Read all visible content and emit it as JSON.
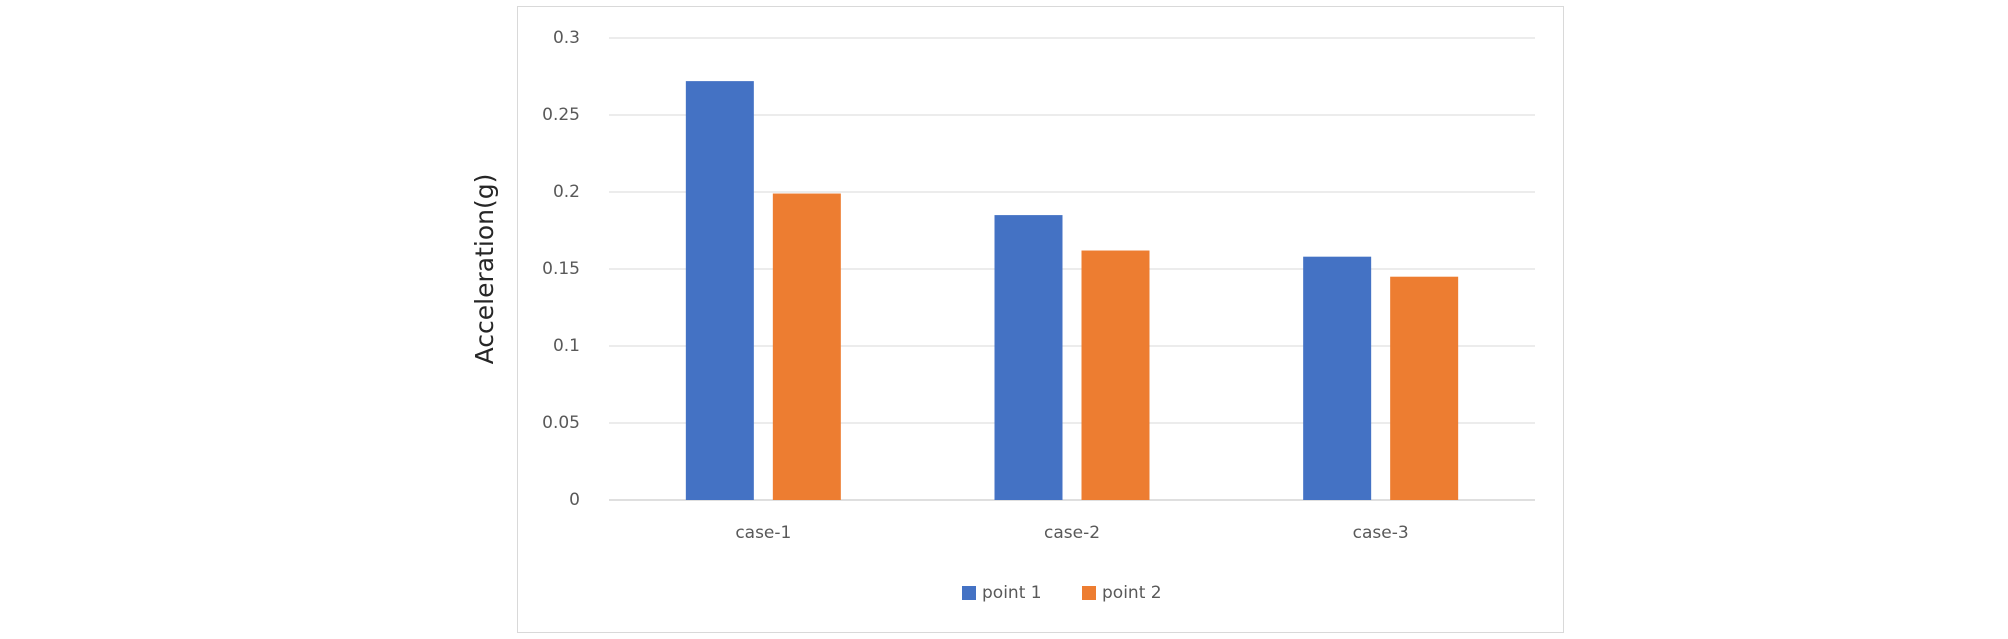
{
  "chart_data": {
    "type": "bar",
    "y_label": "Acceleration(g)",
    "categories": [
      "case-1",
      "case-2",
      "case-3"
    ],
    "series": [
      {
        "name": "point 1",
        "color": "#4472c4",
        "values": [
          0.272,
          0.185,
          0.158
        ]
      },
      {
        "name": "point 2",
        "color": "#ed7d31",
        "values": [
          0.199,
          0.162,
          0.145
        ]
      }
    ],
    "ylim": [
      0,
      0.3
    ],
    "yticks": [
      0,
      0.05,
      0.1,
      0.15,
      0.2,
      0.25,
      0.3
    ],
    "grid": true,
    "legend": "bottom"
  }
}
